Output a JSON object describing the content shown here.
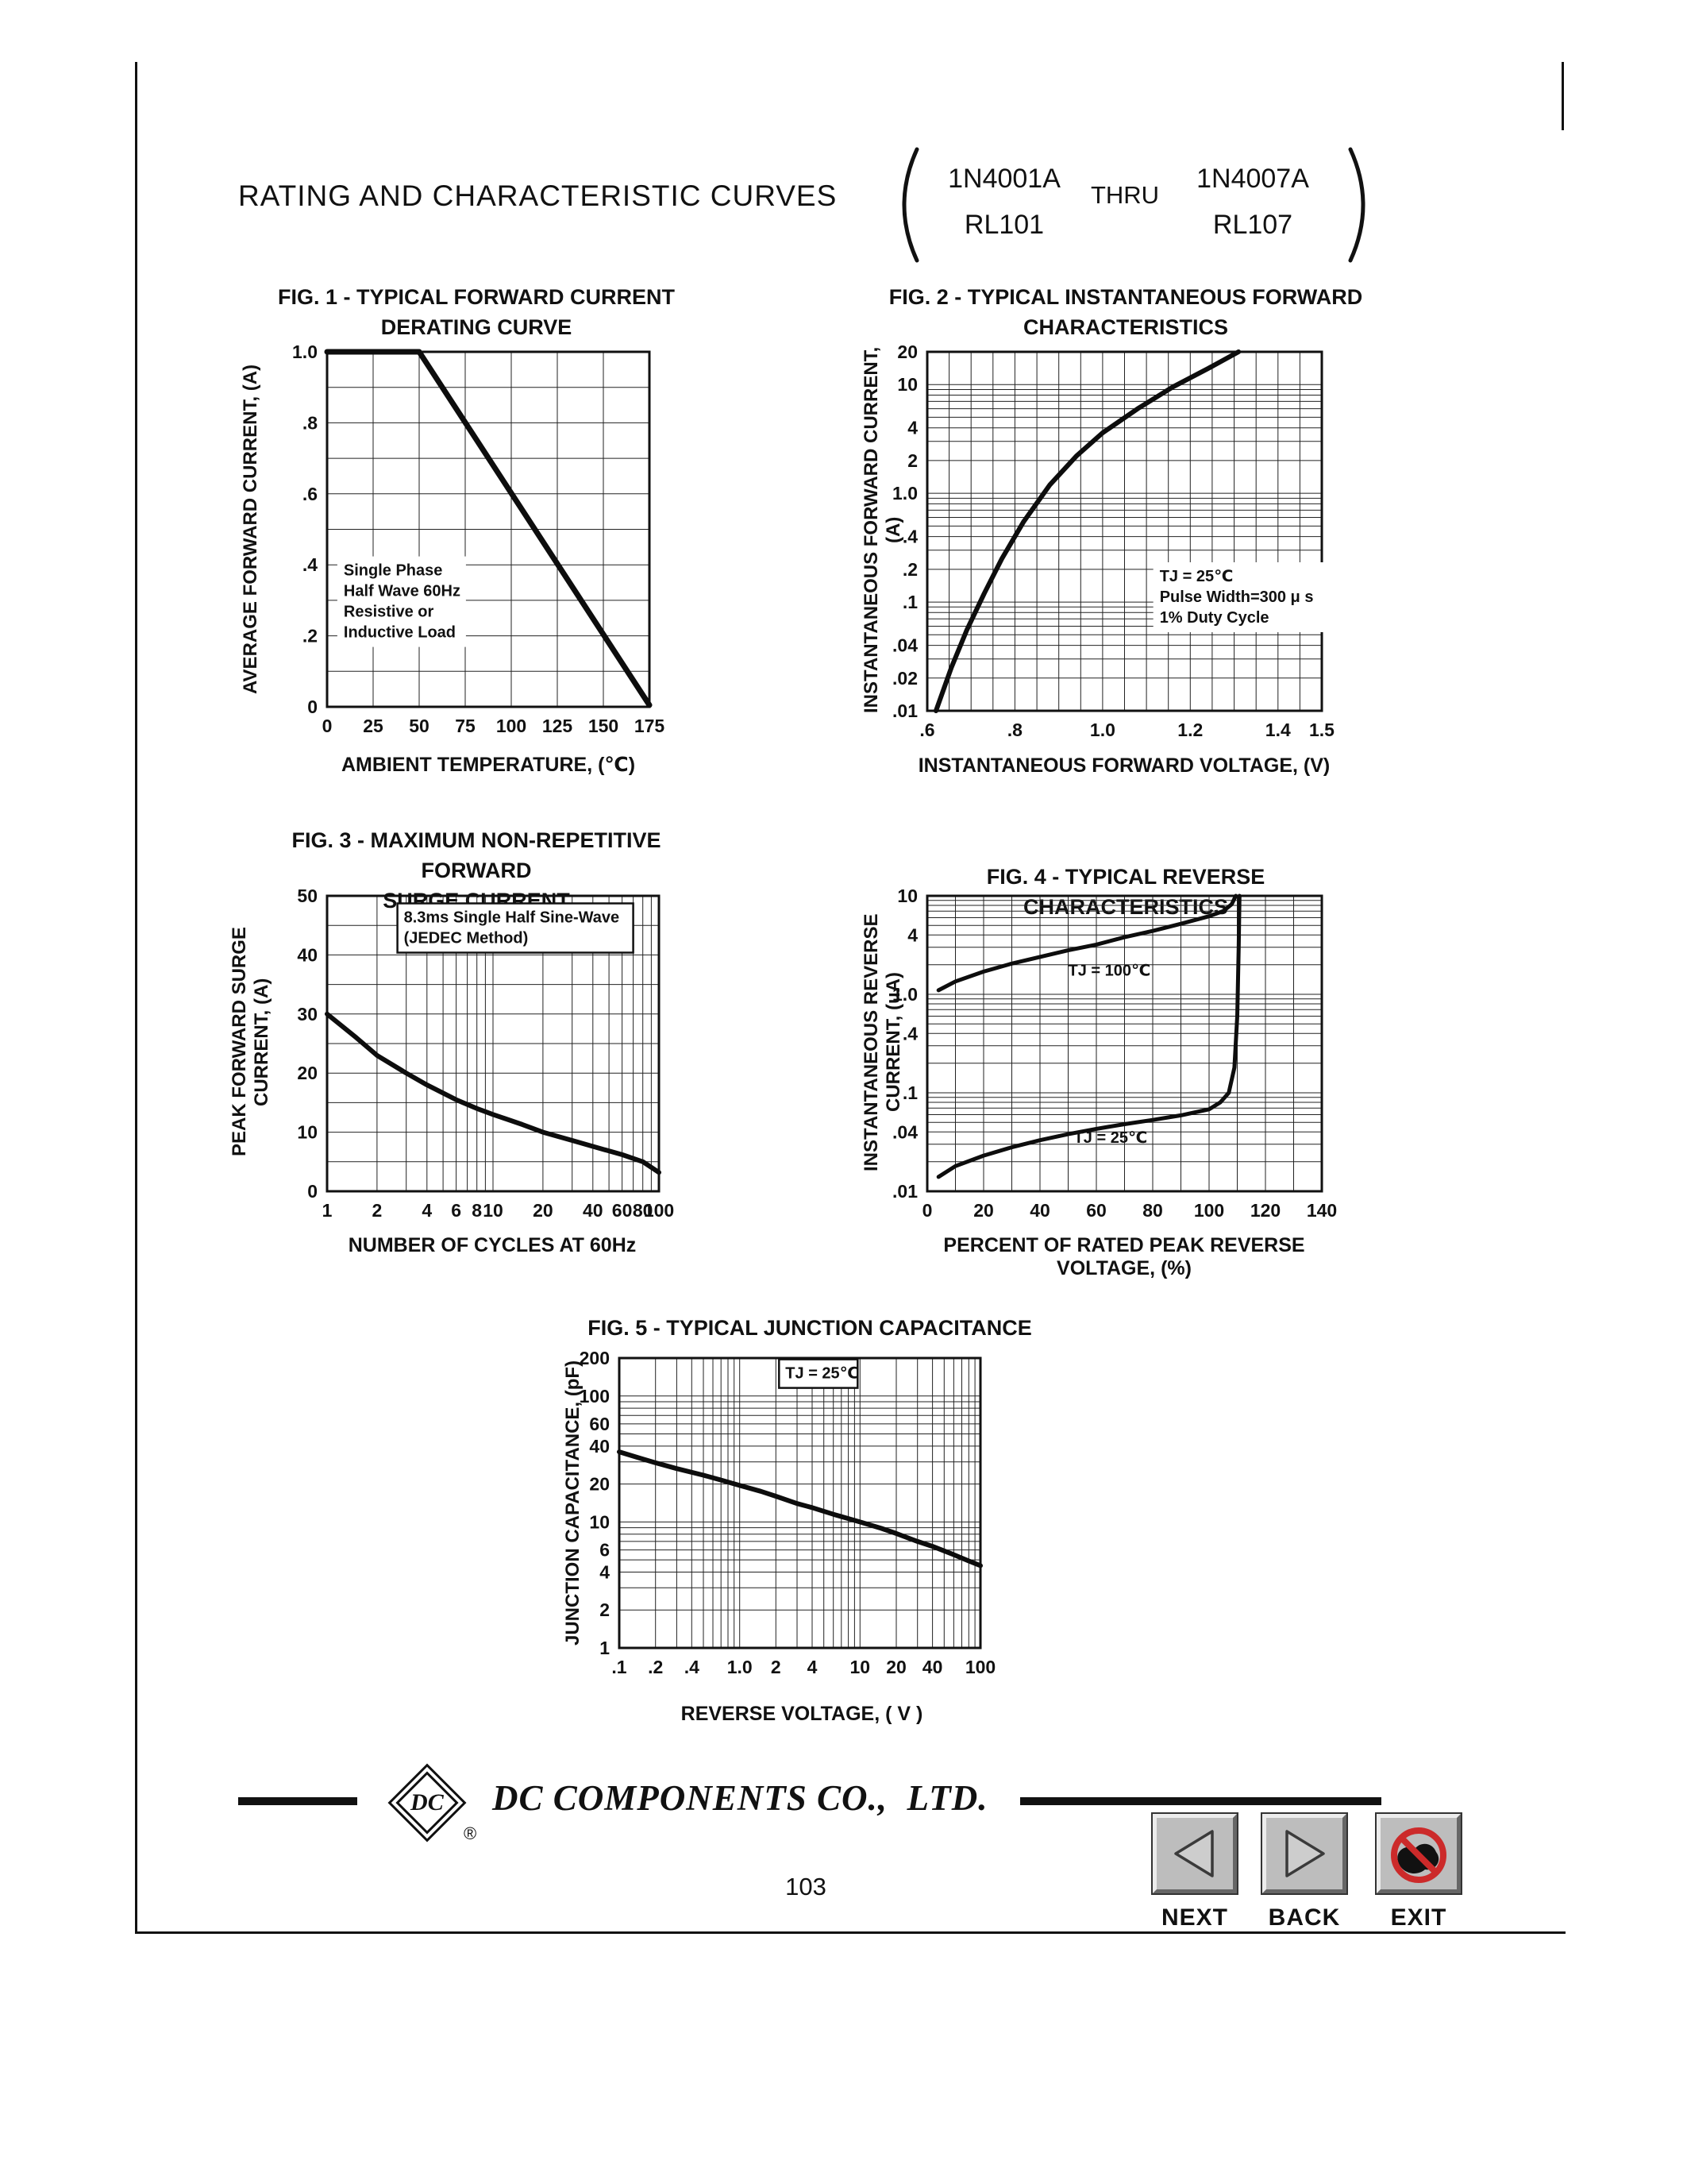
{
  "header": {
    "title": "RATING AND CHARACTERISTIC CURVES",
    "parts": {
      "left_top": "1N4001A",
      "left_bottom": "RL101",
      "thru": "THRU",
      "right_top": "1N4007A",
      "right_bottom": "RL107"
    }
  },
  "footer": {
    "company": "DC COMPONENTS CO.,  LTD.",
    "logo": "DC",
    "reg": "®",
    "page_number": "103"
  },
  "nav": {
    "next": "NEXT",
    "back": "BACK",
    "exit": "EXIT"
  },
  "colors": {
    "ink": "#111111",
    "button_gray": "#bdbdbd",
    "exit_red": "#cc2a2a"
  },
  "chart_data": [
    {
      "id": "fig1",
      "type": "line",
      "title": "FIG. 1 - TYPICAL FORWARD CURRENT\nDERATING CURVE",
      "xlabel": "AMBIENT TEMPERATURE, (℃)",
      "ylabel": "AVERAGE FORWARD CURRENT, (A)",
      "x_scale": "linear",
      "x_min": 0,
      "x_max": 175,
      "y_scale": "linear",
      "y_min": 0,
      "y_max": 1.0,
      "x_gridlines": [
        25,
        50,
        75,
        100,
        125,
        150
      ],
      "y_gridlines": [
        0.1,
        0.2,
        0.3,
        0.4,
        0.5,
        0.6,
        0.7,
        0.8,
        0.9
      ],
      "x_ticks": [
        [
          0,
          "0"
        ],
        [
          25,
          "25"
        ],
        [
          50,
          "50"
        ],
        [
          75,
          "75"
        ],
        [
          100,
          "100"
        ],
        [
          125,
          "125"
        ],
        [
          150,
          "150"
        ],
        [
          175,
          "175"
        ]
      ],
      "y_ticks": [
        [
          0,
          "0"
        ],
        [
          0.2,
          ".2"
        ],
        [
          0.4,
          ".4"
        ],
        [
          0.6,
          ".6"
        ],
        [
          0.8,
          ".8"
        ],
        [
          1.0,
          "1.0"
        ]
      ],
      "series": [
        {
          "name": "derating-curve",
          "w": 7,
          "points": [
            [
              0,
              1.0
            ],
            [
              50,
              1.0
            ],
            [
              175,
              0.005
            ]
          ]
        }
      ],
      "annotations": [
        {
          "x": 9,
          "y": 0.37,
          "fs": 20,
          "lines": [
            "Single Phase",
            "Half Wave 60Hz",
            "Resistive or",
            "Inductive Load"
          ]
        }
      ]
    },
    {
      "id": "fig2",
      "type": "line",
      "title": "FIG. 2 - TYPICAL INSTANTANEOUS FORWARD\nCHARACTERISTICS",
      "xlabel": "INSTANTANEOUS FORWARD VOLTAGE, (V)",
      "ylabel": "INSTANTANEOUS FORWARD CURRENT, (A)",
      "x_scale": "linear",
      "x_min": 0.6,
      "x_max": 1.5,
      "y_scale": "log",
      "y_min": 0.01,
      "y_max": 20,
      "x_gridlines": [
        0.65,
        0.7,
        0.75,
        0.8,
        0.85,
        0.9,
        0.95,
        1.0,
        1.05,
        1.1,
        1.15,
        1.2,
        1.25,
        1.3,
        1.35,
        1.4,
        1.45
      ],
      "y_gridlines": [
        0.02,
        0.03,
        0.04,
        0.05,
        0.06,
        0.07,
        0.08,
        0.09,
        0.1,
        0.2,
        0.3,
        0.4,
        0.5,
        0.6,
        0.7,
        0.8,
        0.9,
        1,
        2,
        3,
        4,
        5,
        6,
        7,
        8,
        9,
        10
      ],
      "x_ticks": [
        [
          0.6,
          ".6"
        ],
        [
          0.8,
          ".8"
        ],
        [
          1.0,
          "1.0"
        ],
        [
          1.2,
          "1.2"
        ],
        [
          1.4,
          "1.4"
        ],
        [
          1.5,
          "1.5"
        ]
      ],
      "y_ticks": [
        [
          20,
          "20"
        ],
        [
          10,
          "10"
        ],
        [
          4,
          "4"
        ],
        [
          2,
          "2"
        ],
        [
          1,
          "1.0"
        ],
        [
          0.4,
          ".4"
        ],
        [
          0.2,
          ".2"
        ],
        [
          0.1,
          ".1"
        ],
        [
          0.04,
          ".04"
        ],
        [
          0.02,
          ".02"
        ],
        [
          0.01,
          ".01"
        ]
      ],
      "series": [
        {
          "name": "forward-characteristic",
          "w": 6,
          "points": [
            [
              0.62,
              0.01
            ],
            [
              0.655,
              0.025
            ],
            [
              0.69,
              0.055
            ],
            [
              0.73,
              0.12
            ],
            [
              0.77,
              0.25
            ],
            [
              0.82,
              0.55
            ],
            [
              0.88,
              1.2
            ],
            [
              0.94,
              2.2
            ],
            [
              1.0,
              3.6
            ],
            [
              1.08,
              6
            ],
            [
              1.16,
              9.5
            ],
            [
              1.24,
              14
            ],
            [
              1.31,
              20
            ]
          ]
        }
      ],
      "annotations": [
        {
          "x": 1.13,
          "y": 0.155,
          "fs": 20,
          "lines": [
            "TJ = 25℃",
            "Pulse Width=300 μ s",
            "1% Duty Cycle"
          ]
        }
      ]
    },
    {
      "id": "fig3",
      "type": "line",
      "title": "FIG. 3 - MAXIMUM NON-REPETITIVE FORWARD\nSURGE CURRENT",
      "xlabel": "NUMBER OF CYCLES AT 60Hz",
      "ylabel": "PEAK FORWARD SURGE CURRENT, (A)",
      "x_scale": "log",
      "x_min": 1,
      "x_max": 100,
      "y_scale": "linear",
      "y_min": 0,
      "y_max": 50,
      "x_gridlines": [
        2,
        3,
        4,
        5,
        6,
        7,
        8,
        9,
        10,
        20,
        30,
        40,
        50,
        60,
        70,
        80,
        90
      ],
      "y_gridlines": [
        5,
        10,
        15,
        20,
        25,
        30,
        35,
        40,
        45
      ],
      "x_ticks": [
        [
          1,
          "1"
        ],
        [
          2,
          "2"
        ],
        [
          4,
          "4"
        ],
        [
          6,
          "6"
        ],
        [
          8,
          "8"
        ],
        [
          10,
          "10"
        ],
        [
          20,
          "20"
        ],
        [
          40,
          "40"
        ],
        [
          60,
          "60"
        ],
        [
          80,
          "80"
        ],
        [
          100,
          "100"
        ]
      ],
      "y_ticks": [
        [
          0,
          "0"
        ],
        [
          10,
          "10"
        ],
        [
          20,
          "20"
        ],
        [
          30,
          "30"
        ],
        [
          40,
          "40"
        ],
        [
          50,
          "50"
        ]
      ],
      "series": [
        {
          "name": "surge-current",
          "w": 6,
          "points": [
            [
              1,
              30
            ],
            [
              1.5,
              26
            ],
            [
              2,
              23
            ],
            [
              3,
              20
            ],
            [
              4,
              18
            ],
            [
              6,
              15.5
            ],
            [
              8,
              14
            ],
            [
              10,
              13
            ],
            [
              15,
              11.3
            ],
            [
              20,
              10
            ],
            [
              30,
              8.6
            ],
            [
              40,
              7.6
            ],
            [
              60,
              6.2
            ],
            [
              80,
              5
            ],
            [
              100,
              3.2
            ]
          ]
        }
      ],
      "annotations": [
        {
          "x": 2.9,
          "y": 45.5,
          "fs": 20,
          "box": true,
          "lines": [
            "8.3ms Single Half Sine-Wave",
            "(JEDEC Method)"
          ]
        }
      ]
    },
    {
      "id": "fig4",
      "type": "line",
      "title": "FIG. 4 - TYPICAL REVERSE CHARACTERISTICS",
      "xlabel": "PERCENT OF RATED PEAK REVERSE VOLTAGE, (%)",
      "ylabel": "INSTANTANEOUS REVERSE CURRENT, (uA)",
      "x_scale": "linear",
      "x_min": 0,
      "x_max": 140,
      "y_scale": "log",
      "y_min": 0.01,
      "y_max": 10,
      "x_gridlines": [
        10,
        20,
        30,
        40,
        50,
        60,
        70,
        80,
        90,
        100,
        110,
        120,
        130
      ],
      "y_gridlines": [
        0.02,
        0.03,
        0.04,
        0.05,
        0.06,
        0.07,
        0.08,
        0.09,
        0.1,
        0.2,
        0.3,
        0.4,
        0.5,
        0.6,
        0.7,
        0.8,
        0.9,
        1,
        2,
        3,
        4,
        5,
        6,
        7,
        8,
        9
      ],
      "x_ticks": [
        [
          0,
          "0"
        ],
        [
          20,
          "20"
        ],
        [
          40,
          "40"
        ],
        [
          60,
          "60"
        ],
        [
          80,
          "80"
        ],
        [
          100,
          "100"
        ],
        [
          120,
          "120"
        ],
        [
          140,
          "140"
        ]
      ],
      "y_ticks": [
        [
          10,
          "10"
        ],
        [
          4,
          "4"
        ],
        [
          1,
          "1.0"
        ],
        [
          0.4,
          ".4"
        ],
        [
          0.1,
          ".1"
        ],
        [
          0.04,
          ".04"
        ],
        [
          0.01,
          ".01"
        ]
      ],
      "series": [
        {
          "name": "tj-100c",
          "w": 5,
          "points": [
            [
              4,
              1.1
            ],
            [
              10,
              1.35
            ],
            [
              20,
              1.7
            ],
            [
              30,
              2.05
            ],
            [
              40,
              2.4
            ],
            [
              50,
              2.8
            ],
            [
              60,
              3.2
            ],
            [
              70,
              3.8
            ],
            [
              80,
              4.4
            ],
            [
              90,
              5.2
            ],
            [
              100,
              6.2
            ],
            [
              105,
              7
            ],
            [
              108,
              8.2
            ],
            [
              109.5,
              10
            ]
          ]
        },
        {
          "name": "tj-25c",
          "w": 5,
          "points": [
            [
              4,
              0.014
            ],
            [
              10,
              0.018
            ],
            [
              20,
              0.023
            ],
            [
              30,
              0.028
            ],
            [
              40,
              0.033
            ],
            [
              50,
              0.038
            ],
            [
              60,
              0.043
            ],
            [
              70,
              0.048
            ],
            [
              80,
              0.053
            ],
            [
              90,
              0.059
            ],
            [
              100,
              0.068
            ],
            [
              104,
              0.08
            ],
            [
              107,
              0.1
            ],
            [
              109,
              0.18
            ],
            [
              110,
              0.6
            ],
            [
              110.5,
              3
            ],
            [
              110.8,
              10
            ]
          ]
        }
      ],
      "annotations": [
        {
          "x": 50,
          "y": 1.55,
          "fs": 20,
          "bg": false,
          "lines": [
            "TJ = 100℃"
          ]
        },
        {
          "x": 52,
          "y": 0.031,
          "fs": 20,
          "bg": false,
          "lines": [
            "TJ = 25℃"
          ]
        }
      ]
    },
    {
      "id": "fig5",
      "type": "line",
      "title": "FIG. 5 - TYPICAL JUNCTION CAPACITANCE",
      "xlabel": "REVERSE VOLTAGE, ( V )",
      "ylabel": "JUNCTION CAPACITANCE, (pF)",
      "x_scale": "log",
      "x_min": 0.1,
      "x_max": 100,
      "y_scale": "log",
      "y_min": 1,
      "y_max": 200,
      "x_gridlines": [
        0.2,
        0.3,
        0.4,
        0.5,
        0.6,
        0.7,
        0.8,
        0.9,
        1,
        2,
        3,
        4,
        5,
        6,
        7,
        8,
        9,
        10,
        20,
        30,
        40,
        50,
        60,
        70,
        80,
        90
      ],
      "y_gridlines": [
        2,
        3,
        4,
        5,
        6,
        7,
        8,
        9,
        10,
        20,
        30,
        40,
        50,
        60,
        70,
        80,
        90,
        100
      ],
      "x_ticks": [
        [
          0.1,
          ".1"
        ],
        [
          0.2,
          ".2"
        ],
        [
          0.4,
          ".4"
        ],
        [
          1,
          "1.0"
        ],
        [
          2,
          "2"
        ],
        [
          4,
          "4"
        ],
        [
          10,
          "10"
        ],
        [
          20,
          "20"
        ],
        [
          40,
          "40"
        ],
        [
          100,
          "100"
        ]
      ],
      "y_ticks": [
        [
          200,
          "200"
        ],
        [
          100,
          "100"
        ],
        [
          60,
          "60"
        ],
        [
          40,
          "40"
        ],
        [
          20,
          "20"
        ],
        [
          10,
          "10"
        ],
        [
          6,
          "6"
        ],
        [
          4,
          "4"
        ],
        [
          2,
          "2"
        ],
        [
          1,
          "1"
        ]
      ],
      "series": [
        {
          "name": "junction-capacitance",
          "w": 6,
          "points": [
            [
              0.1,
              36
            ],
            [
              0.15,
              32
            ],
            [
              0.2,
              29.5
            ],
            [
              0.3,
              26.5
            ],
            [
              0.5,
              23.5
            ],
            [
              0.7,
              21.5
            ],
            [
              1,
              19.5
            ],
            [
              1.5,
              17.5
            ],
            [
              2,
              16
            ],
            [
              3,
              14
            ],
            [
              4,
              13
            ],
            [
              6,
              11.5
            ],
            [
              10,
              10
            ],
            [
              15,
              8.9
            ],
            [
              20,
              8.1
            ],
            [
              30,
              7
            ],
            [
              40,
              6.4
            ],
            [
              60,
              5.5
            ],
            [
              80,
              4.9
            ],
            [
              100,
              4.5
            ]
          ]
        }
      ],
      "annotations": [
        {
          "x": 2.4,
          "y": 138,
          "fs": 20,
          "box": true,
          "lines": [
            "TJ = 25℃"
          ]
        }
      ]
    }
  ]
}
